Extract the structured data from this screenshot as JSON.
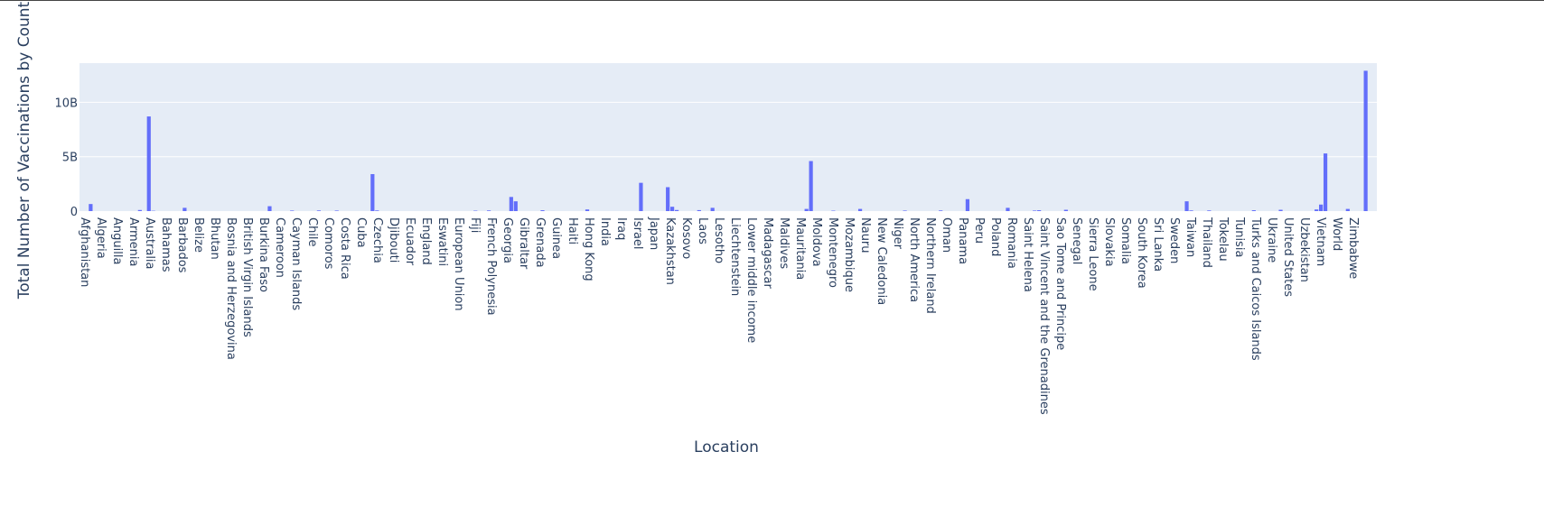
{
  "chart_data": {
    "type": "bar",
    "xlabel": "Location",
    "ylabel": "Total Number of Vaccinations by Country",
    "ylim": [
      0,
      13600000000
    ],
    "yticks": [
      {
        "value": 0,
        "label": "0"
      },
      {
        "value": 5000000000,
        "label": "5B"
      },
      {
        "value": 10000000000,
        "label": "10B"
      }
    ],
    "x_tick_labels": [
      "Afghanistan",
      "Algeria",
      "Anguilla",
      "Armenia",
      "Australia",
      "Bahamas",
      "Barbados",
      "Belize",
      "Bhutan",
      "Bosnia and Herzegovina",
      "British Virgin Islands",
      "Burkina Faso",
      "Cameroon",
      "Cayman Islands",
      "Chile",
      "Comoros",
      "Costa Rica",
      "Cuba",
      "Czechia",
      "Djibouti",
      "Ecuador",
      "England",
      "Eswatini",
      "European Union",
      "Fiji",
      "French Polynesia",
      "Georgia",
      "Gibraltar",
      "Grenada",
      "Guinea",
      "Haiti",
      "Hong Kong",
      "India",
      "Iraq",
      "Israel",
      "Japan",
      "Kazakhstan",
      "Kosovo",
      "Laos",
      "Lesotho",
      "Liechtenstein",
      "Lower middle income",
      "Madagascar",
      "Maldives",
      "Mauritania",
      "Moldova",
      "Montenegro",
      "Mozambique",
      "Nauru",
      "New Caledonia",
      "Niger",
      "North America",
      "Northern Ireland",
      "Oman",
      "Panama",
      "Peru",
      "Poland",
      "Romania",
      "Saint Helena",
      "Saint Vincent and the Grenadines",
      "Sao Tome and Principe",
      "Senegal",
      "Sierra Leone",
      "Slovakia",
      "Somalia",
      "South Korea",
      "Sri Lanka",
      "Sweden",
      "Taiwan",
      "Thailand",
      "Tokelau",
      "Tunisia",
      "Turks and Caicos Islands",
      "Ukraine",
      "United States",
      "Uzbekistan",
      "Vietnam",
      "World",
      "Zimbabwe"
    ],
    "categories_count": 235,
    "bars": [
      {
        "index": 2,
        "value": 650000000
      },
      {
        "index": 13,
        "value": 100000000
      },
      {
        "index": 15,
        "value": 8700000000
      },
      {
        "index": 16,
        "value": 30000000
      },
      {
        "index": 23,
        "value": 300000000
      },
      {
        "index": 42,
        "value": 450000000
      },
      {
        "index": 47,
        "value": 50000000
      },
      {
        "index": 53,
        "value": 60000000
      },
      {
        "index": 57,
        "value": 50000000
      },
      {
        "index": 65,
        "value": 3400000000
      },
      {
        "index": 66,
        "value": 60000000
      },
      {
        "index": 88,
        "value": 40000000
      },
      {
        "index": 91,
        "value": 60000000
      },
      {
        "index": 96,
        "value": 1300000000
      },
      {
        "index": 97,
        "value": 900000000
      },
      {
        "index": 103,
        "value": 80000000
      },
      {
        "index": 113,
        "value": 150000000
      },
      {
        "index": 125,
        "value": 2600000000
      },
      {
        "index": 131,
        "value": 2200000000
      },
      {
        "index": 132,
        "value": 400000000
      },
      {
        "index": 133,
        "value": 100000000
      },
      {
        "index": 138,
        "value": 90000000
      },
      {
        "index": 141,
        "value": 300000000
      },
      {
        "index": 162,
        "value": 200000000
      },
      {
        "index": 163,
        "value": 4600000000
      },
      {
        "index": 168,
        "value": 40000000
      },
      {
        "index": 174,
        "value": 200000000
      },
      {
        "index": 184,
        "value": 50000000
      },
      {
        "index": 192,
        "value": 60000000
      },
      {
        "index": 198,
        "value": 1100000000
      },
      {
        "index": 207,
        "value": 300000000
      },
      {
        "index": 213,
        "value": 50000000
      },
      {
        "index": 214,
        "value": 80000000
      },
      {
        "index": 220,
        "value": 120000000
      },
      {
        "index": 247,
        "value": 900000000
      },
      {
        "index": 248,
        "value": 60000000
      },
      {
        "index": 252,
        "value": 60000000
      },
      {
        "index": 262,
        "value": 80000000
      },
      {
        "index": 268,
        "value": 120000000
      },
      {
        "index": 276,
        "value": 150000000
      },
      {
        "index": 277,
        "value": 600000000
      },
      {
        "index": 278,
        "value": 5300000000
      },
      {
        "index": 283,
        "value": 200000000
      },
      {
        "index": 287,
        "value": 12900000000
      }
    ],
    "grid": true,
    "bar_color": "#636efa",
    "plot_bg": "#e5ecf6"
  }
}
